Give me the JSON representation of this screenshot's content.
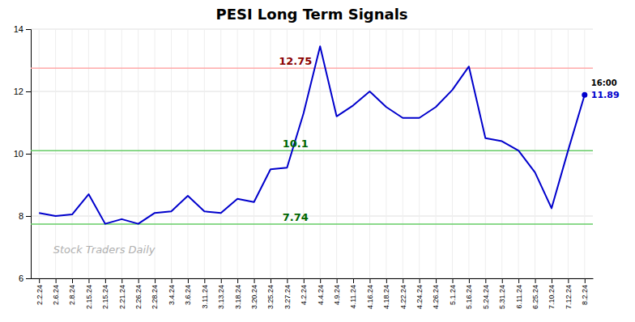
{
  "chart_data": {
    "type": "line",
    "title": "PESI Long Term Signals",
    "watermark": "Stock Traders Daily",
    "categories": [
      "2.2.24",
      "2.6.24",
      "2.8.24",
      "2.15.24",
      "2.15.24",
      "2.21.24",
      "2.26.24",
      "2.28.24",
      "3.4.24",
      "3.6.24",
      "3.11.24",
      "3.13.24",
      "3.18.24",
      "3.20.24",
      "3.25.24",
      "3.27.24",
      "4.2.24",
      "4.4.24",
      "4.9.24",
      "4.11.24",
      "4.16.24",
      "4.18.24",
      "4.22.24",
      "4.24.24",
      "4.26.24",
      "5.1.24",
      "5.16.24",
      "5.24.24",
      "5.31.24",
      "6.11.24",
      "6.25.24",
      "7.10.24",
      "7.12.24",
      "8.2.24"
    ],
    "series": [
      {
        "values": [
          8.1,
          8.0,
          8.05,
          8.7,
          7.75,
          7.9,
          7.75,
          8.1,
          8.15,
          8.65,
          8.15,
          8.1,
          8.55,
          8.45,
          9.5,
          9.55,
          11.3,
          13.45,
          11.2,
          11.55,
          12.0,
          11.5,
          11.15,
          11.15,
          11.5,
          12.05,
          12.8,
          10.5,
          10.4,
          10.1,
          9.4,
          8.25,
          10.1,
          11.89
        ],
        "color": "#0000cc"
      }
    ],
    "ylim": [
      6,
      14
    ],
    "yticks": [
      6,
      8,
      10,
      12,
      14
    ],
    "grid": true,
    "hlines": [
      {
        "value": 12.75,
        "color": "#ffaaaa",
        "label_color": "#8b0000"
      },
      {
        "value": 10.1,
        "color": "#66cc66",
        "label_color": "#006600"
      },
      {
        "value": 7.74,
        "color": "#66cc66",
        "label_color": "#006600"
      }
    ],
    "last_price": {
      "label": "16:00",
      "value": 11.89,
      "color": "#0000cc",
      "label_color": "#000000"
    }
  }
}
